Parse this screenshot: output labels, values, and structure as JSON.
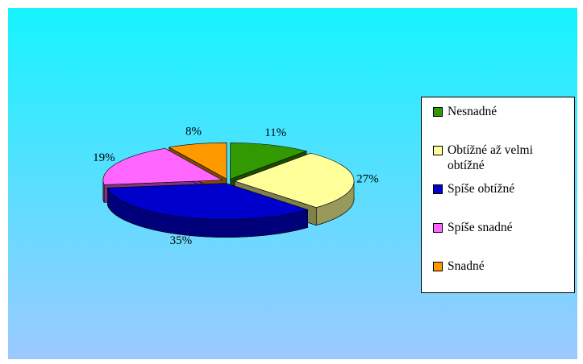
{
  "chart_data": {
    "type": "pie3d",
    "categories": [
      "Nesnadné",
      "Obtížné až velmi obtížné",
      "Spíše obtížné",
      "Spíše snadné",
      "Snadné"
    ],
    "values": [
      11,
      27,
      35,
      19,
      8
    ],
    "value_labels": [
      "11%",
      "27%",
      "35%",
      "19%",
      "8%"
    ],
    "colors": [
      "#339900",
      "#ffff99",
      "#0000cc",
      "#ff66ff",
      "#ff9900"
    ]
  }
}
